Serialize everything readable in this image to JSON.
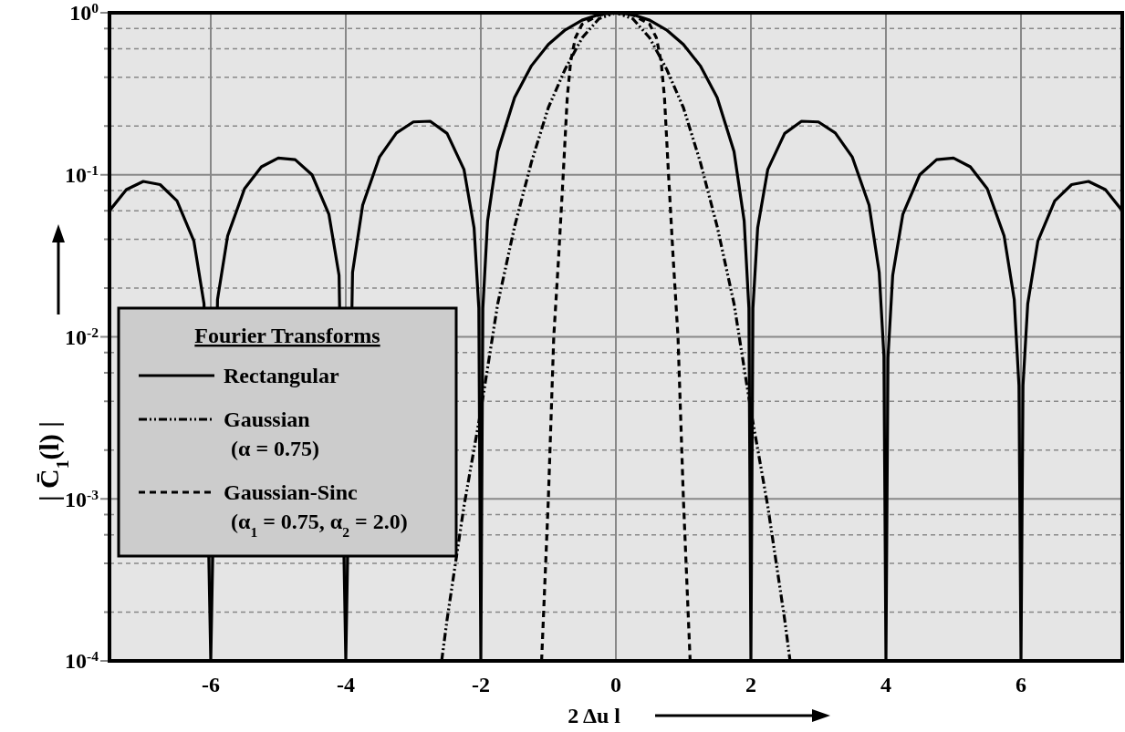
{
  "chart_data": {
    "type": "line",
    "xlabel": "2 Δu l",
    "ylabel": "| C̄$_{1}$(l) |",
    "legend_title": "Fourier Transforms",
    "legend": "left",
    "grid": true,
    "log": "y",
    "xlim": [
      -7.5,
      7.5
    ],
    "xticks": [
      -6,
      -4,
      -2,
      0,
      2,
      4,
      6
    ],
    "ylim": [
      0.0001,
      1
    ],
    "yticks": [
      {
        "value": 1,
        "label": "10$^{0}$"
      },
      {
        "value": 0.8,
        "label": null
      },
      {
        "value": 0.6,
        "label": null
      },
      {
        "value": 0.4,
        "label": null
      },
      {
        "value": 0.2,
        "label": null
      },
      {
        "value": 0.1,
        "label": "10$^{-1}$"
      },
      {
        "value": 0.08,
        "label": null
      },
      {
        "value": 0.06,
        "label": null
      },
      {
        "value": 0.04,
        "label": null
      },
      {
        "value": 0.02,
        "label": null
      },
      {
        "value": 0.01,
        "label": "10$^{-2}$"
      },
      {
        "value": 0.008,
        "label": null
      },
      {
        "value": 0.006,
        "label": null
      },
      {
        "value": 0.004,
        "label": null
      },
      {
        "value": 0.002,
        "label": null
      },
      {
        "value": 0.001,
        "label": "10$^{-3}$"
      },
      {
        "value": 0.0008,
        "label": null
      },
      {
        "value": 0.0006,
        "label": null
      },
      {
        "value": 0.0004,
        "label": null
      },
      {
        "value": 0.0002,
        "label": null
      },
      {
        "value": 0.0001,
        "label": "10$^{-4}$"
      }
    ],
    "series": [
      {
        "name": "Rectangular",
        "color": "#000000",
        "line_style": "solid",
        "x": [
          -7.5,
          -7.25,
          -7,
          -6.75,
          -6.5,
          -6.25,
          -6.1,
          -6,
          -5.9,
          -5.75,
          -5.5,
          -5.25,
          -5,
          -4.75,
          -4.5,
          -4.25,
          -4.1,
          -4,
          -3.9,
          -3.75,
          -3.5,
          -3.25,
          -3,
          -2.75,
          -2.5,
          -2.25,
          -2.1,
          -2.03,
          -2,
          -1.97,
          -1.9,
          -1.75,
          -1.5,
          -1.25,
          -1,
          -0.75,
          -0.5,
          -0.25,
          0,
          0.25,
          0.5,
          0.75,
          1,
          1.25,
          1.5,
          1.75,
          1.9,
          1.97,
          2,
          2.03,
          2.1,
          2.25,
          2.5,
          2.75,
          3,
          3.25,
          3.5,
          3.75,
          3.9,
          3.97,
          4,
          4.03,
          4.1,
          4.25,
          4.5,
          4.75,
          5,
          5.25,
          5.5,
          5.75,
          5.9,
          5.97,
          6,
          6.03,
          6.1,
          6.25,
          6.5,
          6.75,
          7,
          7.25,
          7.5
        ],
        "values": [
          0.06,
          0.081,
          0.091,
          0.087,
          0.069,
          0.039,
          0.016,
          0.0001,
          0.017,
          0.042,
          0.082,
          0.112,
          0.127,
          0.124,
          0.1,
          0.057,
          0.024,
          0.0001,
          0.025,
          0.065,
          0.129,
          0.181,
          0.212,
          0.214,
          0.18,
          0.108,
          0.047,
          0.015,
          0.0001,
          0.015,
          0.052,
          0.139,
          0.3,
          0.471,
          0.637,
          0.784,
          0.9,
          0.974,
          1,
          0.974,
          0.9,
          0.784,
          0.637,
          0.471,
          0.3,
          0.139,
          0.052,
          0.015,
          0.0001,
          0.015,
          0.047,
          0.108,
          0.18,
          0.214,
          0.212,
          0.181,
          0.129,
          0.065,
          0.025,
          0.0076,
          0.0001,
          0.0074,
          0.024,
          0.057,
          0.1,
          0.124,
          0.127,
          0.112,
          0.082,
          0.042,
          0.017,
          0.005,
          0.0001,
          0.005,
          0.016,
          0.039,
          0.069,
          0.087,
          0.091,
          0.081,
          0.06
        ]
      },
      {
        "name": "Gaussian (α = 0.75)",
        "color": "#000000",
        "line_style": "dotted",
        "x": [
          -2.58,
          -2.5,
          -2.25,
          -2,
          -1.75,
          -1.5,
          -1.25,
          -1,
          -0.75,
          -0.5,
          -0.25,
          0,
          0.25,
          0.5,
          0.75,
          1,
          1.25,
          1.5,
          1.75,
          2,
          2.25,
          2.5,
          2.58
        ],
        "values": [
          0.0001,
          0.00018,
          0.0009,
          0.0035,
          0.016,
          0.048,
          0.12,
          0.26,
          0.45,
          0.7,
          0.92,
          1,
          0.92,
          0.7,
          0.45,
          0.26,
          0.12,
          0.048,
          0.016,
          0.0035,
          0.0009,
          0.00018,
          0.0001
        ]
      },
      {
        "name": "Gaussian-Sinc (α$_{1}$ = 0.75, α$_{2}$ = 2.0)",
        "color": "#000000",
        "line_style": "dashed",
        "x": [
          -1.1,
          -1,
          -0.92,
          -0.85,
          -0.78,
          -0.72,
          -0.67,
          -0.6,
          -0.5,
          -0.25,
          0,
          0.25,
          0.5,
          0.6,
          0.67,
          0.72,
          0.78,
          0.85,
          0.92,
          1,
          1.1
        ],
        "values": [
          0.0001,
          0.001,
          0.01,
          0.03,
          0.1,
          0.3,
          0.5,
          0.7,
          0.85,
          0.97,
          1,
          0.97,
          0.85,
          0.7,
          0.5,
          0.3,
          0.1,
          0.03,
          0.01,
          0.001,
          0.0001
        ]
      }
    ]
  }
}
